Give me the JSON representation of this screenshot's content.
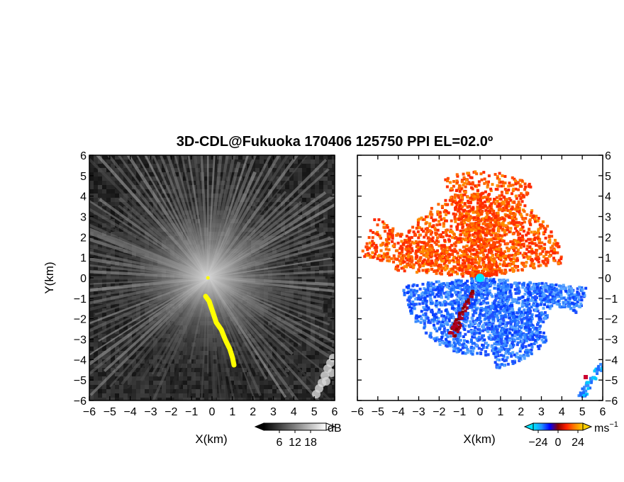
{
  "title": "3D-CDL@Fukuoka 170406 125750 PPI EL=02.0º",
  "chart_data": [
    {
      "type": "heatmap",
      "panel": "left",
      "field": "SNR",
      "xlabel": "X(km)",
      "ylabel": "Y(km)",
      "xlim": [
        -6,
        6
      ],
      "ylim": [
        -6,
        6
      ],
      "xticks": [
        "−6",
        "−5",
        "−4",
        "−3",
        "−2",
        "−1",
        "0",
        "1",
        "2",
        "3",
        "4",
        "5",
        "6"
      ],
      "yticks": [
        "6",
        "5",
        "4",
        "3",
        "2",
        "1",
        "0",
        "−1",
        "−2",
        "−3",
        "−4",
        "−5",
        "−6"
      ],
      "colorbar": {
        "unit": "dB",
        "ticks": [
          "6",
          "12",
          "18"
        ],
        "range": [
          0,
          24
        ],
        "colors": [
          "#000000",
          "#ffffff"
        ]
      },
      "background_color": "#2a2a2a",
      "highlight_color": "#ffff00"
    },
    {
      "type": "heatmap",
      "panel": "right",
      "field": "Doppler velocity",
      "xlabel": "X(km)",
      "ylabel": "",
      "xlim": [
        -6,
        6
      ],
      "ylim": [
        -6,
        6
      ],
      "xticks": [
        "−6",
        "−5",
        "−4",
        "−3",
        "−2",
        "−1",
        "0",
        "1",
        "2",
        "3",
        "4",
        "5",
        "6"
      ],
      "yticks": [
        "6",
        "5",
        "4",
        "3",
        "2",
        "1",
        "0",
        "−1",
        "−2",
        "−3",
        "−4",
        "−5",
        "−6"
      ],
      "colorbar": {
        "unit": "ms",
        "unit_exp": "−1",
        "ticks": [
          "−24",
          "0",
          "24"
        ],
        "range": [
          -30,
          30
        ],
        "colors": [
          "#00e5ff",
          "#1e90ff",
          "#0000ff",
          "#8b0000",
          "#ff2000",
          "#ff8000",
          "#ffd000"
        ]
      },
      "background_color": "#ffffff"
    }
  ]
}
